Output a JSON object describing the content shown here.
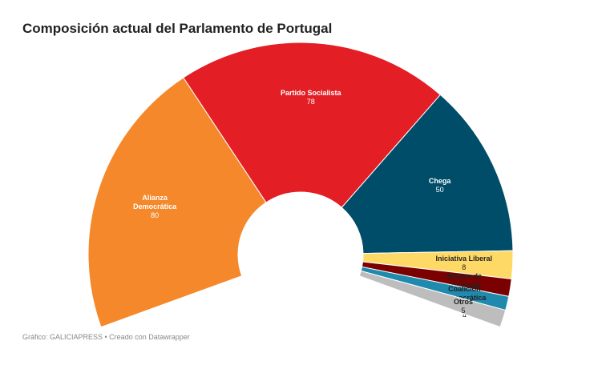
{
  "chart_data": {
    "type": "arc",
    "title": "Composición actual del Parlamento de Portugal",
    "categories": [
      "Alianza Democrática",
      "Partido Socialista",
      "Chega",
      "Iniciativa Liberal",
      "Bloque de Izquierda",
      "Coalición Democrática Unitaria",
      "Otros"
    ],
    "values": [
      80,
      78,
      50,
      8,
      5,
      4,
      5
    ],
    "colors": [
      "#f5882a",
      "#e31e25",
      "#004d6a",
      "#ffd966",
      "#7b0000",
      "#1f8aad",
      "#bdbdbd"
    ],
    "source": "Gráfico: GALICIAPRESS • Creado con Datawrapper"
  }
}
